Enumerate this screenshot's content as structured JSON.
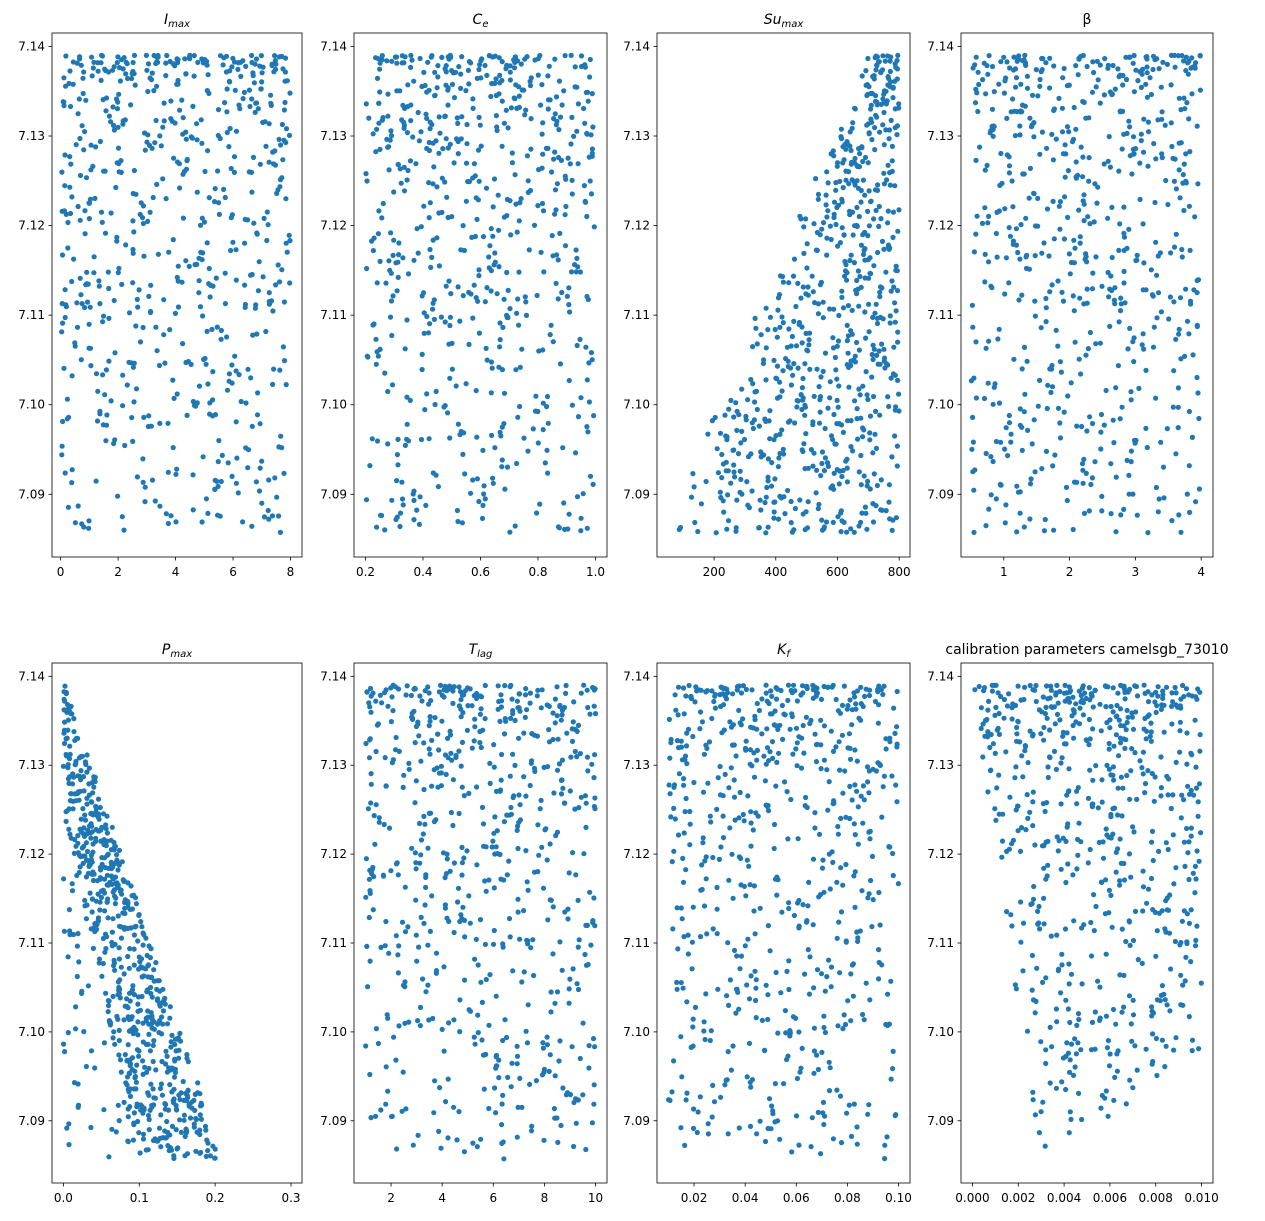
{
  "figure": {
    "point_color": "#1f77b4",
    "y_ticks": [
      "7.09",
      "7.10",
      "7.11",
      "7.12",
      "7.13",
      "7.14"
    ]
  },
  "chart_data": [
    {
      "type": "scatter",
      "title": "I",
      "title_sub": "max",
      "xlim": [
        -0.3,
        8.4
      ],
      "ylim": [
        7.083,
        7.1415
      ],
      "x_ticks": [
        "0",
        "2",
        "4",
        "6",
        "8"
      ],
      "x_tick_values": [
        0,
        2,
        4,
        6,
        8
      ],
      "pattern": "uniform",
      "n_points": 650,
      "x_range": [
        0,
        8
      ]
    },
    {
      "type": "scatter",
      "title": "C",
      "title_sub": "e",
      "xlim": [
        0.16,
        1.04
      ],
      "ylim": [
        7.083,
        7.1415
      ],
      "x_ticks": [
        "0.2",
        "0.4",
        "0.6",
        "0.8",
        "1.0"
      ],
      "x_tick_values": [
        0.2,
        0.4,
        0.6,
        0.8,
        1.0
      ],
      "pattern": "uniform",
      "n_points": 650,
      "x_range": [
        0.2,
        1.0
      ]
    },
    {
      "type": "scatter",
      "title": "Su",
      "title_sub": "max",
      "xlim": [
        15,
        835
      ],
      "ylim": [
        7.083,
        7.1415
      ],
      "x_ticks": [
        "200",
        "400",
        "600",
        "800"
      ],
      "x_tick_values": [
        200,
        400,
        600,
        800
      ],
      "pattern": "wedge",
      "n_points": 700,
      "x_range": [
        50,
        800
      ]
    },
    {
      "type": "scatter",
      "title": "β",
      "title_sub": "",
      "xlim": [
        0.35,
        4.18
      ],
      "ylim": [
        7.083,
        7.1415
      ],
      "x_ticks": [
        "1",
        "2",
        "3",
        "4"
      ],
      "x_tick_values": [
        1,
        2,
        3,
        4
      ],
      "pattern": "uniform",
      "n_points": 650,
      "x_range": [
        0.5,
        4.0
      ]
    },
    {
      "type": "scatter",
      "title": "P",
      "title_sub": "max",
      "xlim": [
        -0.015,
        0.3145
      ],
      "ylim": [
        7.083,
        7.1415
      ],
      "x_ticks": [
        "0.0",
        "0.1",
        "0.2",
        "0.3"
      ],
      "x_tick_values": [
        0.0,
        0.1,
        0.2,
        0.3
      ],
      "pattern": "decreasing",
      "n_points": 700,
      "x_range": [
        0,
        0.3
      ]
    },
    {
      "type": "scatter",
      "title": "T",
      "title_sub": "lag",
      "xlim": [
        0.55,
        10.45
      ],
      "ylim": [
        7.083,
        7.1415
      ],
      "x_ticks": [
        "2",
        "4",
        "6",
        "8",
        "10"
      ],
      "x_tick_values": [
        2,
        4,
        6,
        8,
        10
      ],
      "pattern": "uniform",
      "n_points": 650,
      "x_range": [
        1,
        10
      ]
    },
    {
      "type": "scatter",
      "title": "K",
      "title_sub": "f",
      "xlim": [
        0.0055,
        0.1045
      ],
      "ylim": [
        7.083,
        7.1415
      ],
      "x_ticks": [
        "0.02",
        "0.04",
        "0.06",
        "0.08",
        "0.10"
      ],
      "x_tick_values": [
        0.02,
        0.04,
        0.06,
        0.08,
        0.1
      ],
      "pattern": "uniform",
      "n_points": 650,
      "x_range": [
        0.01,
        0.1
      ]
    },
    {
      "type": "scatter",
      "title": "calibration parameters camelsgb_73010",
      "title_sub": "",
      "xlim": [
        -0.0005,
        0.0105
      ],
      "ylim": [
        7.083,
        7.1415
      ],
      "x_ticks": [
        "0.000",
        "0.002",
        "0.004",
        "0.006",
        "0.008",
        "0.010"
      ],
      "x_tick_values": [
        0.0,
        0.002,
        0.004,
        0.006,
        0.008,
        0.01
      ],
      "pattern": "lower-bound",
      "n_points": 650,
      "x_range": [
        0,
        0.01
      ]
    }
  ]
}
